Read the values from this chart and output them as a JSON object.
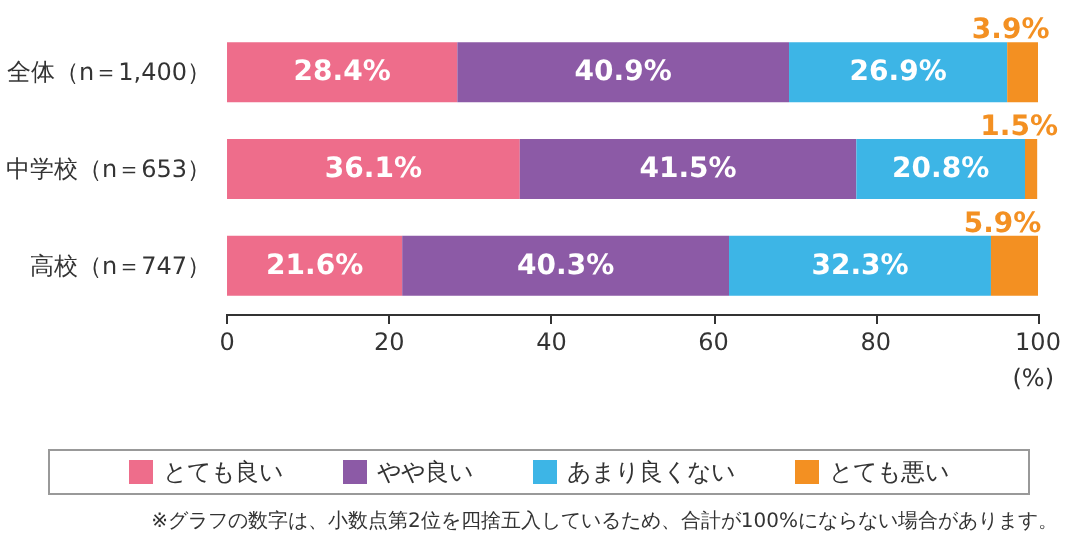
{
  "chart_data": {
    "type": "bar",
    "orientation": "horizontal",
    "stacked": true,
    "categories": [
      "全体（n＝1,400）",
      "中学校（n＝653）",
      "高校（n＝747）"
    ],
    "series": [
      {
        "name": "とても良い",
        "color": "#ee6d8b",
        "values": [
          28.4,
          36.1,
          21.6
        ],
        "value_labels": [
          "28.4%",
          "36.1%",
          "21.6%"
        ]
      },
      {
        "name": "やや良い",
        "color": "#8c5aa6",
        "values": [
          40.9,
          41.5,
          40.3
        ],
        "value_labels": [
          "40.9%",
          "41.5%",
          "40.3%"
        ]
      },
      {
        "name": "あまり良くない",
        "color": "#3db5e6",
        "values": [
          26.9,
          20.8,
          32.3
        ],
        "value_labels": [
          "26.9%",
          "20.8%",
          "32.3%"
        ]
      },
      {
        "name": "とても悪い",
        "color": "#f39022",
        "values": [
          3.9,
          1.5,
          5.9
        ],
        "value_labels": [
          "3.9%",
          "1.5%",
          "5.9%"
        ]
      }
    ],
    "xlim": [
      0,
      100
    ],
    "xticks": [
      0,
      20,
      40,
      60,
      80,
      100
    ],
    "xlabel": "(%)",
    "grid": false,
    "legend": "bottom",
    "annotations": [
      "※グラフの数字は、小数点第2位を四捨五入しているため、合計が100%にならない場合があります。"
    ]
  }
}
